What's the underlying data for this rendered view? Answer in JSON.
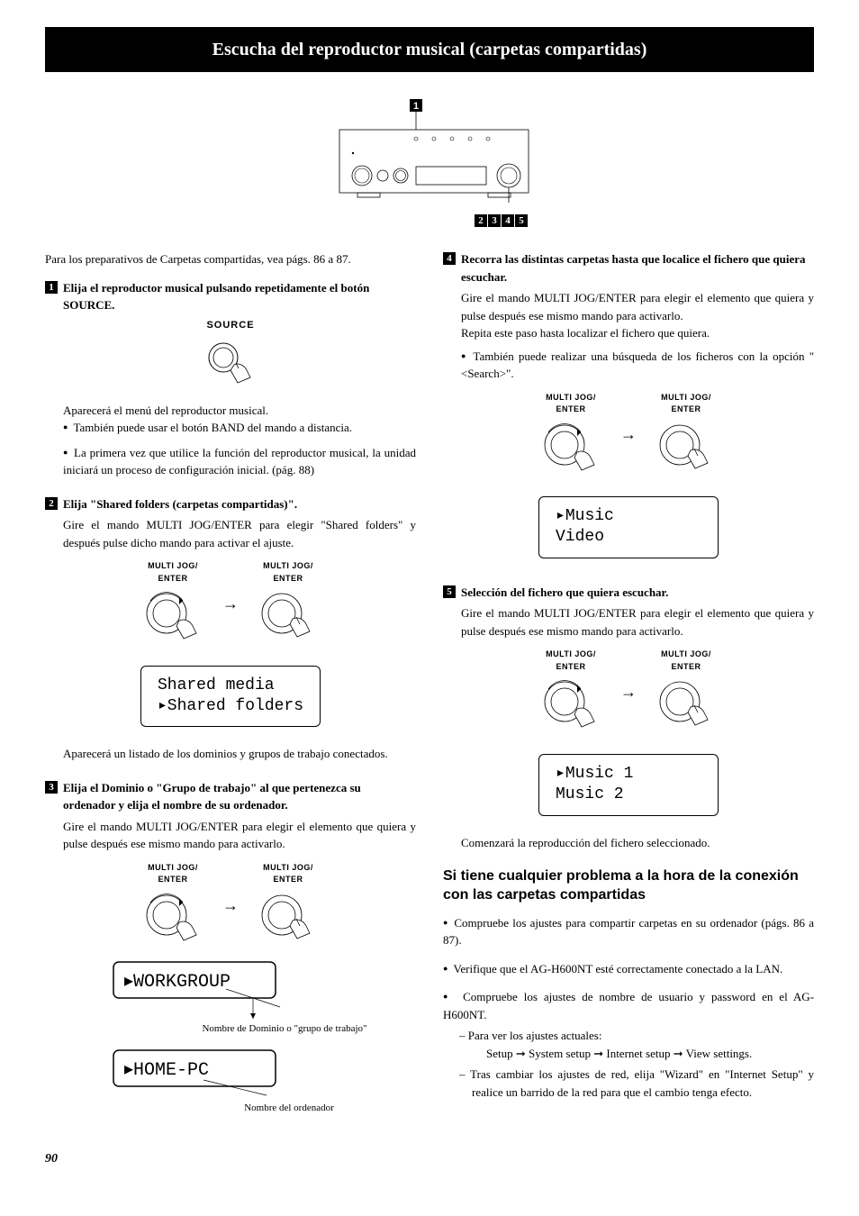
{
  "title": "Escucha del reproductor musical (carpetas compartidas)",
  "intro": "Para los preparativos de Carpetas compartidas, vea págs. 86 a 87.",
  "sourceLabel": "SOURCE",
  "jogLabel": "MULTI JOG/\nENTER",
  "steps": {
    "s1": {
      "num": "1",
      "head": "Elija el reproductor musical pulsando repetidamente el botón SOURCE.",
      "after": "Aparecerá el menú del reproductor musical.",
      "bullets": [
        "También puede usar el botón BAND del mando a distancia.",
        "La primera vez que utilice la función del reproductor musical, la unidad iniciará un proceso de configuración inicial. (pág. 88)"
      ]
    },
    "s2": {
      "num": "2",
      "head": "Elija \"Shared folders (carpetas compartidas)\".",
      "body": "Gire el mando MULTI JOG/ENTER para elegir \"Shared folders\" y después pulse dicho mando para activar el ajuste.",
      "display": {
        "l1": " Shared media",
        "l2": "▸Shared folders"
      },
      "after": "Aparecerá un listado de los dominios y grupos de trabajo conectados."
    },
    "s3": {
      "num": "3",
      "head": "Elija el Dominio o \"Grupo de trabajo\" al que pertenezca su ordenador y elija el nombre de su ordenador.",
      "body": "Gire el mando MULTI JOG/ENTER para elegir el elemento que quiera y pulse después ese mismo mando para activarlo.",
      "display1": "▸WORKGROUP",
      "annot1": "Nombre de Dominio o \"grupo de trabajo\"",
      "display2": "▸HOME-PC",
      "annot2": "Nombre del ordenador"
    },
    "s4": {
      "num": "4",
      "head": "Recorra las distintas carpetas hasta que localice el fichero que quiera escuchar.",
      "body": "Gire el mando MULTI JOG/ENTER para elegir el elemento que quiera y pulse después ese mismo mando para activarlo.\nRepita este paso hasta localizar el fichero que quiera.",
      "bullet": "También puede realizar una búsqueda de los ficheros con la opción \"<Search>\".",
      "display": {
        "l1": "▸Music",
        "l2": " Video"
      }
    },
    "s5": {
      "num": "5",
      "head": "Selección del fichero que quiera escuchar.",
      "body": "Gire el mando MULTI JOG/ENTER para elegir el elemento que quiera y pulse después ese mismo mando para activarlo.",
      "display": {
        "l1": "▸Music 1",
        "l2": " Music 2"
      },
      "after": "Comenzará la reproducción del fichero seleccionado."
    }
  },
  "trouble": {
    "head": "Si tiene cualquier problema a la hora de la conexión con las carpetas compartidas",
    "items": [
      "Compruebe los ajustes para compartir carpetas en su ordenador (págs. 86 a 87).",
      "Verifique que el AG-H600NT esté correctamente conectado a la LAN."
    ],
    "item3": "Compruebe los ajustes de nombre de usuario y password en el AG-H600NT.",
    "dash1": "Para ver los ajustes actuales:",
    "chain": "Setup ➞ System setup ➞ Internet setup ➞ View settings.",
    "dash2": "Tras cambiar los ajustes de red, elija \"Wizard\" en \"Internet Setup\" y realice un barrido de la red para que el cambio tenga efecto."
  },
  "pageNum": "90",
  "diagramCallout1": "1",
  "diagramCallouts": [
    "2",
    "3",
    "4",
    "5"
  ]
}
